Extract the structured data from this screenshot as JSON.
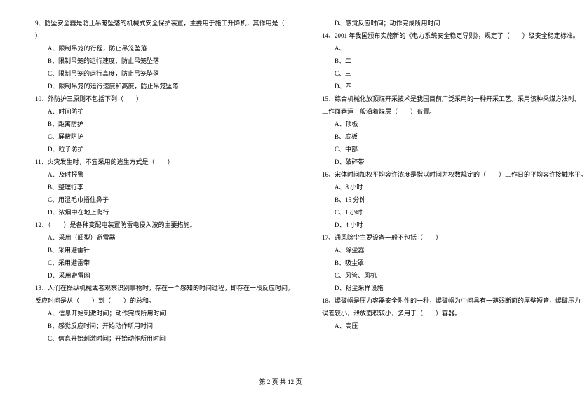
{
  "left": {
    "q9": {
      "stem1": "9、防坠安全器是防止吊笼坠落的机械式安全保护装置，主要用于施工升降机，其作用是（",
      "stem2": "）",
      "a": "A、限制吊笼的行程，防止吊笼坠落",
      "b": "B、限制吊笼的运行速度，防止吊笼坠落",
      "c": "C、限制吊笼的运行高度，防止吊笼坠落",
      "d": "D、限制吊笼的运行速度和高度，防止吊笼坠落"
    },
    "q10": {
      "stem": "10、外防护三原则不包括下列（　　）",
      "a": "A、时间防护",
      "b": "B、距离防护",
      "c": "C、屏蔽防护",
      "d": "D、粒子防护"
    },
    "q11": {
      "stem": "11、火灾发生时，不宜采用的逃生方式是（　　）",
      "a": "A、及时报警",
      "b": "B、整理行李",
      "c": "C、用湿毛巾捂住鼻子",
      "d": "D、浓烟中在地上爬行"
    },
    "q12": {
      "stem": "12、（　　）是各种变配电装置防雷电侵入波的主要措施。",
      "a": "A、采用（阀型）避雷器",
      "b": "B、采用避雷针",
      "c": "C、采用避雷带",
      "d": "D、采用避雷网"
    },
    "q13": {
      "stem1": "13、人们在操纵机械或者观察识别事物时，存在一个感知的时间过程，即存在一段反应时间。",
      "stem2": "反应时间是从（　　）到（　　）的总和。",
      "a": "A、信息开始刺激时间；动作完成所用时间",
      "b": "B、感觉反应时间；开始动作所用时间",
      "c": "C、信息开始刺激时间；开始动作所用时间"
    }
  },
  "right": {
    "q13d": "D、感觉反应时间；动作完成所用时间",
    "q14": {
      "stem": "14、2001 年我国颁布实施新的《电力系统安全稳定导则》，规定了（　　）级安全稳定标准。",
      "a": "A、一",
      "b": "B、二",
      "c": "C、三",
      "d": "D、四"
    },
    "q15": {
      "stem1": "15、综合机械化放顶煤开采技术是我国目前广泛采用的一种开采工艺。采用该种采煤方法时,",
      "stem2": "工作面巷道一般沿着煤层（　　）布置。",
      "a": "A、顶板",
      "b": "B、底板",
      "c": "C、中部",
      "d": "D、破碎带"
    },
    "q16": {
      "stem": "16、宋体时间加权平均容许浓度是指以时间为权数规定的（　　）工作日的平均容许接触水平。",
      "a": "A、8 小时",
      "b": "B、15 分钟",
      "c": "C、1 小时",
      "d": "D、4 小时"
    },
    "q17": {
      "stem": "17、通风除尘主要设备一般不包括（　　）",
      "a": "A、除尘器",
      "b": "B、吸尘罩",
      "c": "C、风管、风机",
      "d": "D、粉尘采样设施"
    },
    "q18": {
      "stem1": "18、爆破帽是压力容器安全附件的一种，爆破帽为中间具有一薄弱断面的厚壁短管，爆破压力",
      "stem2": "误差较小，泄放面积较小，多用于（　　）容器。",
      "a": "A、高压"
    }
  },
  "footer": "第 2 页 共 12 页"
}
